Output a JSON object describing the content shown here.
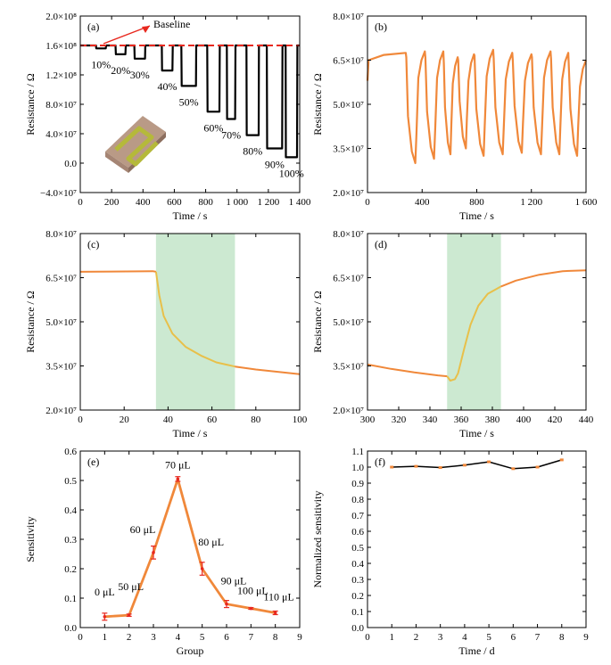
{
  "figure": {
    "chart_data": [
      {
        "panel": "(a)",
        "type": "line",
        "xlabel": "Time / s",
        "ylabel": "Resistance / Ω",
        "xlim": [
          0,
          1400
        ],
        "ylim": [
          -40000000.0,
          200000000.0
        ],
        "xticks": [
          0,
          200,
          400,
          600,
          800,
          1000,
          1200,
          1400
        ],
        "xtick_labels": [
          "0",
          "200",
          "400",
          "600",
          "800",
          "1 000",
          "1 200",
          "1 400"
        ],
        "yticks": [
          -40000000.0,
          0,
          40000000.0,
          80000000.0,
          120000000.0,
          160000000.0,
          200000000.0
        ],
        "ytick_labels": [
          "−4.0×10⁷",
          "0.0",
          "4.0×10⁷",
          "8.0×10⁷",
          "1.2×10⁸",
          "1.6×10⁸",
          "2.0×10⁸"
        ],
        "baseline_label": "Baseline",
        "baseline_value": 160000000.0,
        "baseline_color": "#e8281e",
        "series_color": "#000000",
        "pulses": [
          {
            "label": "10%",
            "start": 100,
            "end": 165,
            "min": 156000000.0
          },
          {
            "label": "20%",
            "start": 225,
            "end": 290,
            "min": 148000000.0
          },
          {
            "label": "30%",
            "start": 345,
            "end": 415,
            "min": 142000000.0
          },
          {
            "label": "40%",
            "start": 520,
            "end": 590,
            "min": 126000000.0
          },
          {
            "label": "50%",
            "start": 645,
            "end": 740,
            "min": 105000000.0
          },
          {
            "label": "60%",
            "start": 810,
            "end": 890,
            "min": 70000000.0
          },
          {
            "label": "70%",
            "start": 935,
            "end": 990,
            "min": 60000000.0
          },
          {
            "label": "80%",
            "start": 1060,
            "end": 1140,
            "min": 38000000.0
          },
          {
            "label": "90%",
            "start": 1190,
            "end": 1290,
            "min": 20000000.0
          },
          {
            "label": "100%",
            "start": 1310,
            "end": 1385,
            "min": 8000000.0
          }
        ]
      },
      {
        "panel": "(b)",
        "type": "line",
        "xlabel": "Time / s",
        "ylabel": "Resistance / Ω",
        "xlim": [
          0,
          1600
        ],
        "ylim": [
          20000000.0,
          80000000.0
        ],
        "xticks": [
          0,
          400,
          800,
          1200,
          1600
        ],
        "xtick_labels": [
          "0",
          "400",
          "800",
          "1 200",
          "1 600"
        ],
        "yticks": [
          20000000.0,
          35000000.0,
          50000000.0,
          65000000.0,
          80000000.0
        ],
        "ytick_labels": [
          "2.0×10⁷",
          "3.5×10⁷",
          "5.0×10⁷",
          "6.5×10⁷",
          "8.0×10⁷"
        ],
        "series_color": "#f0883a",
        "cycles": [
          {
            "start": 280,
            "min": 30000000.0,
            "max": 68000000.0
          },
          {
            "start": 420,
            "min": 31500000.0,
            "max": 68000000.0
          },
          {
            "start": 555,
            "min": 33000000.0,
            "max": 66000000.0
          },
          {
            "start": 660,
            "min": 35000000.0,
            "max": 67000000.0
          },
          {
            "start": 780,
            "min": 32500000.0,
            "max": 68500000.0
          },
          {
            "start": 920,
            "min": 33000000.0,
            "max": 67500000.0
          },
          {
            "start": 1060,
            "min": 33500000.0,
            "max": 67000000.0
          },
          {
            "start": 1200,
            "min": 33000000.0,
            "max": 68000000.0
          },
          {
            "start": 1340,
            "min": 33000000.0,
            "max": 67500000.0
          },
          {
            "start": 1470,
            "min": 32500000.0,
            "max": 65000000.0
          }
        ]
      },
      {
        "panel": "(c)",
        "type": "line",
        "xlabel": "Time / s",
        "ylabel": "Resistance / Ω",
        "xlim": [
          0,
          100
        ],
        "ylim": [
          20000000.0,
          80000000.0
        ],
        "xticks": [
          0,
          20,
          40,
          60,
          80,
          100
        ],
        "xtick_labels": [
          "0",
          "20",
          "40",
          "60",
          "80",
          "100"
        ],
        "yticks": [
          20000000.0,
          35000000.0,
          50000000.0,
          65000000.0,
          80000000.0
        ],
        "ytick_labels": [
          "2.0×10⁷",
          "3.5×10⁷",
          "5.0×10⁷",
          "6.5×10⁷",
          "8.0×10⁷"
        ],
        "shade": [
          34.5,
          70.5
        ],
        "shade_color": "#bfe3c6",
        "series_color": "#f0883a",
        "highlight_color": "#e8c04a",
        "points": [
          [
            0,
            67000000.0
          ],
          [
            33,
            67200000.0
          ],
          [
            34.5,
            67000000.0
          ],
          [
            36,
            59000000.0
          ],
          [
            38,
            52000000.0
          ],
          [
            42,
            46000000.0
          ],
          [
            48,
            41500000.0
          ],
          [
            55,
            38500000.0
          ],
          [
            62,
            36200000.0
          ],
          [
            70.5,
            34800000.0
          ],
          [
            80,
            33800000.0
          ],
          [
            90,
            33000000.0
          ],
          [
            100,
            32200000.0
          ]
        ]
      },
      {
        "panel": "(d)",
        "type": "line",
        "xlabel": "Time / s",
        "ylabel": "Resistance / Ω",
        "xlim": [
          300,
          440
        ],
        "ylim": [
          20000000.0,
          80000000.0
        ],
        "xticks": [
          300,
          320,
          340,
          360,
          380,
          400,
          420,
          440
        ],
        "xtick_labels": [
          "300",
          "320",
          "340",
          "360",
          "380",
          "400",
          "420",
          "440"
        ],
        "yticks": [
          20000000.0,
          35000000.0,
          50000000.0,
          65000000.0,
          80000000.0
        ],
        "ytick_labels": [
          "2.0×10⁷",
          "3.5×10⁷",
          "5.0×10⁷",
          "6.5×10⁷",
          "8.0×10⁷"
        ],
        "shade": [
          351,
          385.5
        ],
        "shade_color": "#bfe3c6",
        "series_color": "#f0883a",
        "highlight_color": "#e8c04a",
        "points": [
          [
            300,
            35500000.0
          ],
          [
            315,
            34000000.0
          ],
          [
            330,
            32800000.0
          ],
          [
            345,
            31800000.0
          ],
          [
            351,
            31500000.0
          ],
          [
            353,
            30000000.0
          ],
          [
            356,
            30500000.0
          ],
          [
            358,
            32500000.0
          ],
          [
            362,
            41000000.0
          ],
          [
            366,
            49000000.0
          ],
          [
            371,
            55500000.0
          ],
          [
            377,
            59500000.0
          ],
          [
            385.5,
            62000000.0
          ],
          [
            395,
            64000000.0
          ],
          [
            410,
            66000000.0
          ],
          [
            425,
            67200000.0
          ],
          [
            440,
            67500000.0
          ]
        ]
      },
      {
        "panel": "(e)",
        "type": "line",
        "xlabel": "Group",
        "ylabel": "Sensitivity",
        "xlim": [
          0,
          9
        ],
        "ylim": [
          0,
          0.6
        ],
        "xticks": [
          0,
          1,
          2,
          3,
          4,
          5,
          6,
          7,
          8,
          9
        ],
        "xtick_labels": [
          "0",
          "1",
          "2",
          "3",
          "4",
          "5",
          "6",
          "7",
          "8",
          "9"
        ],
        "yticks": [
          0,
          0.1,
          0.2,
          0.3,
          0.4,
          0.5,
          0.6
        ],
        "ytick_labels": [
          "0.0",
          "0.1",
          "0.2",
          "0.3",
          "0.4",
          "0.5",
          "0.6"
        ],
        "series_color": "#f0883a",
        "errorbar_color": "#e8281e",
        "points": [
          {
            "x": 1,
            "y": 0.037,
            "err": 0.012,
            "label": "0 μL"
          },
          {
            "x": 2,
            "y": 0.042,
            "err": 0.004,
            "label": "50 μL"
          },
          {
            "x": 3,
            "y": 0.255,
            "err": 0.022,
            "label": "60 μL"
          },
          {
            "x": 4,
            "y": 0.505,
            "err": 0.008,
            "label": "70 μL"
          },
          {
            "x": 5,
            "y": 0.2,
            "err": 0.022,
            "label": "80 μL"
          },
          {
            "x": 6,
            "y": 0.08,
            "err": 0.012,
            "label": "90 μL"
          },
          {
            "x": 7,
            "y": 0.065,
            "err": 0.003,
            "label": "100 μL"
          },
          {
            "x": 8,
            "y": 0.05,
            "err": 0.006,
            "label": "110 μL"
          }
        ]
      },
      {
        "panel": "(f)",
        "type": "line",
        "xlabel": "Time / d",
        "ylabel": "Normalized sensitivity",
        "xlim": [
          0,
          9
        ],
        "ylim": [
          0,
          1.1
        ],
        "xticks": [
          0,
          1,
          2,
          3,
          4,
          5,
          6,
          7,
          8,
          9
        ],
        "xtick_labels": [
          "0",
          "1",
          "2",
          "3",
          "4",
          "5",
          "6",
          "7",
          "8",
          "9"
        ],
        "yticks": [
          0,
          0.1,
          0.2,
          0.3,
          0.4,
          0.5,
          0.6,
          0.7,
          0.8,
          0.9,
          1.0,
          1.1
        ],
        "ytick_labels": [
          "0.0",
          "0.1",
          "0.2",
          "0.3",
          "0.4",
          "0.5",
          "0.6",
          "0.7",
          "0.8",
          "0.9",
          "1.0",
          "1.1"
        ],
        "series_color": "#000000",
        "marker_color": "#f0883a",
        "points": [
          [
            1,
            1.0
          ],
          [
            2,
            1.005
          ],
          [
            3,
            0.997
          ],
          [
            4,
            1.012
          ],
          [
            5,
            1.033
          ],
          [
            6,
            0.99
          ],
          [
            7,
            1.0
          ],
          [
            8,
            1.045
          ]
        ]
      }
    ]
  }
}
